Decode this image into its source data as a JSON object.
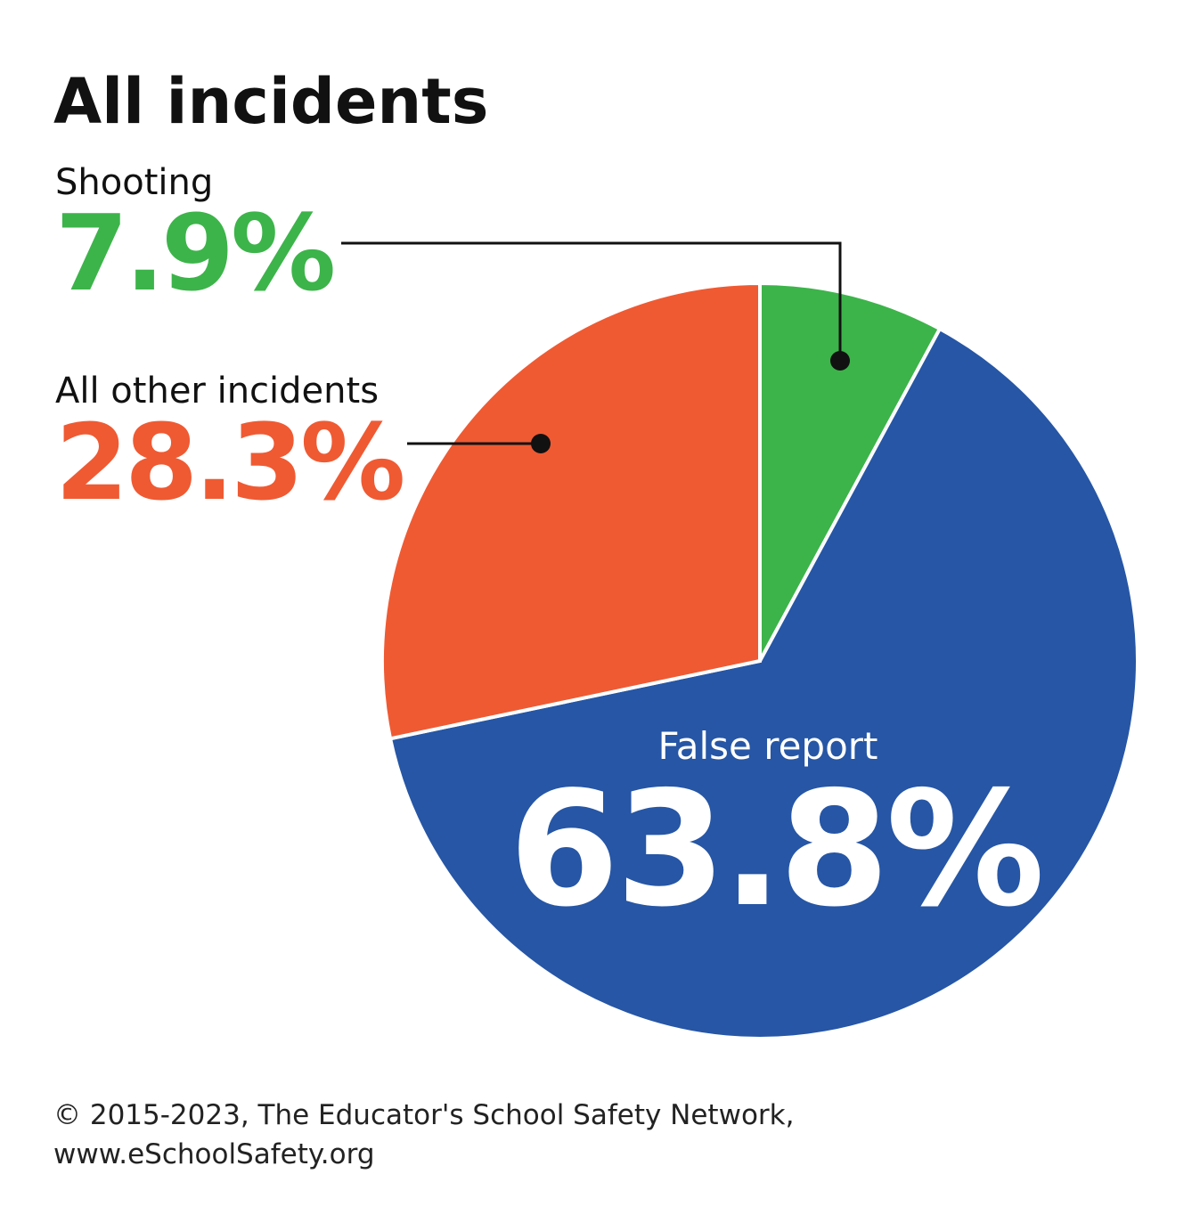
{
  "chart_data": {
    "type": "pie",
    "title": "All incidents",
    "categories": [
      "Shooting",
      "False report",
      "All other incidents"
    ],
    "values": [
      7.9,
      63.8,
      28.3
    ],
    "value_labels": [
      "7.9%",
      "63.8%",
      "28.3%"
    ],
    "colors": [
      "#3cb44a",
      "#2656a5",
      "#ef5a33"
    ],
    "source": [
      "© 2015-2023, The Educator's School Safety Network,",
      "www.eSchoolSafety.org"
    ]
  }
}
